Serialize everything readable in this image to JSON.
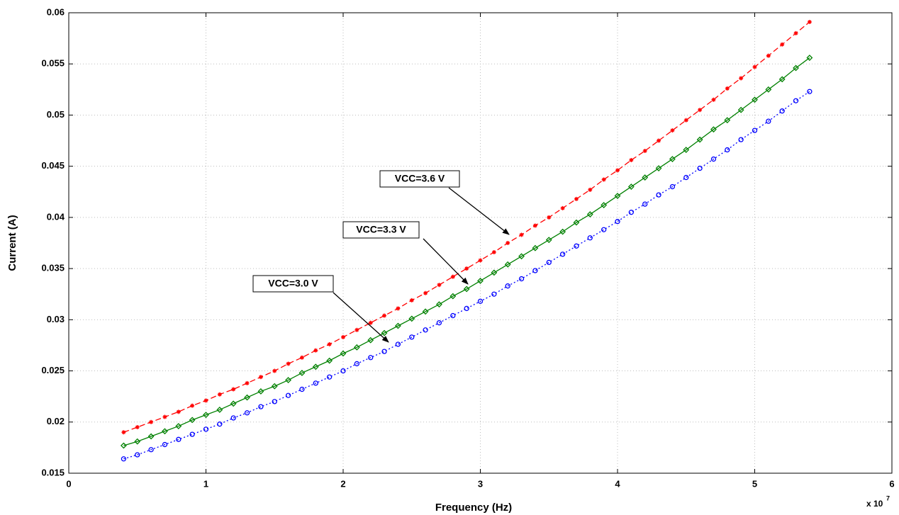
{
  "chart_data": {
    "type": "line",
    "xlabel": "Frequency (Hz)",
    "ylabel": "Current (A)",
    "x_multiplier": "x 10",
    "x_multiplier_exponent": "7",
    "xlim": [
      0,
      6
    ],
    "xticks": [
      0,
      1,
      2,
      3,
      4,
      5,
      6
    ],
    "ylim": [
      0.015,
      0.06
    ],
    "yticks": [
      0.015,
      0.02,
      0.025,
      0.03,
      0.035,
      0.04,
      0.045,
      0.05,
      0.055,
      0.06
    ],
    "grid": true,
    "x": [
      0.4,
      0.5,
      0.6,
      0.7,
      0.8,
      0.9,
      1.0,
      1.1,
      1.2,
      1.3,
      1.4,
      1.5,
      1.6,
      1.7,
      1.8,
      1.9,
      2.0,
      2.1,
      2.2,
      2.3,
      2.4,
      2.5,
      2.6,
      2.7,
      2.8,
      2.9,
      3.0,
      3.1,
      3.2,
      3.3,
      3.4,
      3.5,
      3.6,
      3.7,
      3.8,
      3.9,
      4.0,
      4.1,
      4.2,
      4.3,
      4.4,
      4.5,
      4.6,
      4.7,
      4.8,
      4.9,
      5.0,
      5.1,
      5.2,
      5.3,
      5.4
    ],
    "series": [
      {
        "name": "VCC=3.6 V",
        "color": "#ff0000",
        "line_style": "dashed",
        "marker": "star",
        "values": [
          0.019,
          0.0195,
          0.02,
          0.0205,
          0.021,
          0.0216,
          0.0221,
          0.0227,
          0.0232,
          0.0238,
          0.0244,
          0.025,
          0.0257,
          0.0263,
          0.027,
          0.0276,
          0.0283,
          0.029,
          0.0297,
          0.0304,
          0.0311,
          0.0319,
          0.0326,
          0.0334,
          0.0342,
          0.035,
          0.0358,
          0.0366,
          0.0375,
          0.0383,
          0.0392,
          0.04,
          0.0409,
          0.0418,
          0.0427,
          0.0437,
          0.0446,
          0.0456,
          0.0465,
          0.0475,
          0.0485,
          0.0495,
          0.0505,
          0.0515,
          0.0526,
          0.0536,
          0.0547,
          0.0558,
          0.0569,
          0.058,
          0.0591
        ]
      },
      {
        "name": "VCC=3.3 V",
        "color": "#008000",
        "line_style": "solid",
        "marker": "diamond",
        "values": [
          0.0177,
          0.0181,
          0.0186,
          0.0191,
          0.0196,
          0.0202,
          0.0207,
          0.0212,
          0.0218,
          0.0224,
          0.023,
          0.0235,
          0.0241,
          0.0248,
          0.0254,
          0.026,
          0.0267,
          0.0273,
          0.028,
          0.0287,
          0.0294,
          0.0301,
          0.0308,
          0.0315,
          0.0323,
          0.033,
          0.0338,
          0.0346,
          0.0354,
          0.0362,
          0.037,
          0.0378,
          0.0386,
          0.0395,
          0.0403,
          0.0412,
          0.0421,
          0.043,
          0.0439,
          0.0448,
          0.0457,
          0.0466,
          0.0476,
          0.0486,
          0.0495,
          0.0505,
          0.0515,
          0.0525,
          0.0535,
          0.0546,
          0.0556
        ]
      },
      {
        "name": "VCC=3.0 V",
        "color": "#0000ff",
        "line_style": "dotted",
        "marker": "circle",
        "values": [
          0.0164,
          0.0168,
          0.0173,
          0.0178,
          0.0183,
          0.0188,
          0.0193,
          0.0198,
          0.0204,
          0.0209,
          0.0215,
          0.022,
          0.0226,
          0.0232,
          0.0238,
          0.0244,
          0.025,
          0.0257,
          0.0263,
          0.0269,
          0.0276,
          0.0283,
          0.029,
          0.0297,
          0.0304,
          0.0311,
          0.0318,
          0.0325,
          0.0333,
          0.034,
          0.0348,
          0.0356,
          0.0364,
          0.0372,
          0.038,
          0.0388,
          0.0396,
          0.0405,
          0.0413,
          0.0422,
          0.043,
          0.0439,
          0.0448,
          0.0457,
          0.0466,
          0.0476,
          0.0485,
          0.0494,
          0.0504,
          0.0514,
          0.0523
        ]
      }
    ]
  }
}
